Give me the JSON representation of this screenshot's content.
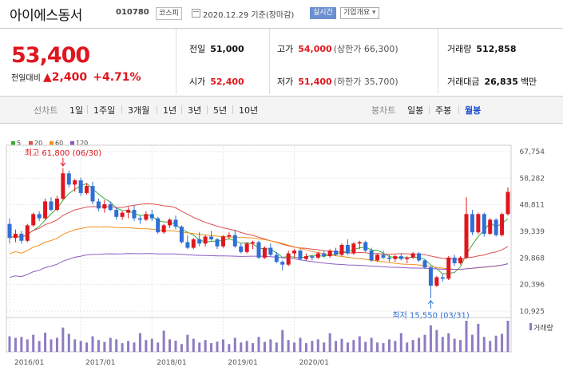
{
  "header": {
    "name": "아이에스동서",
    "code": "010780",
    "market": "코스피",
    "date": "2020.12.29 기준(장마감)",
    "realtime": "실시간",
    "company_info": "기업개요"
  },
  "summary": {
    "price": "53,400",
    "change_label": "전일대비",
    "change": "2,400",
    "change_pct": "+4.71%",
    "prev_close_label": "전일",
    "prev_close": "51,000",
    "open_label": "시가",
    "open": "52,400",
    "high_label": "고가",
    "high": "54,000",
    "upper_limit": "(상한가 66,300)",
    "low_label": "저가",
    "low": "51,400",
    "lower_limit": "(하한가 35,700)",
    "volume_label": "거래량",
    "volume": "512,858",
    "amount_label": "거래대금",
    "amount": "26,835",
    "amount_unit": "백만"
  },
  "tabs": {
    "line_chart": "선차트",
    "periods": [
      "1일",
      "1주일",
      "3개월",
      "1년",
      "3년",
      "5년",
      "10년"
    ],
    "candle_label": "봉차트",
    "candles": [
      "일봉",
      "주봉",
      "월봉"
    ],
    "selected_candle": "월봉"
  },
  "colors": {
    "up": "#e0161e",
    "down": "#2f6fd6",
    "ma5": "#3aa93a",
    "ma20": "#e05050",
    "ma60": "#f2911b",
    "ma120": "#8c5bc4",
    "volume": "#8d7cc2"
  },
  "chart_data": {
    "type": "candlestick",
    "ylim": [
      10925,
      67754
    ],
    "yticks": [
      "67,754",
      "58,282",
      "48,811",
      "39,339",
      "29,868",
      "20,396",
      "10,925"
    ],
    "xticks": [
      "2016/01",
      "2017/01",
      "2018/01",
      "2019/01",
      "2020/01"
    ],
    "legend": [
      "5",
      "20",
      "60",
      "120"
    ],
    "volume_label": "거래량",
    "high_note": "최고 61,800 (06/30)",
    "low_note": "최저 15,550 (03/31)",
    "candles": [
      [
        42000,
        44000,
        35000,
        37000
      ],
      [
        37000,
        40000,
        35500,
        38500
      ],
      [
        38500,
        39500,
        35000,
        36000
      ],
      [
        36000,
        42000,
        35500,
        41500
      ],
      [
        41500,
        46000,
        41000,
        45500
      ],
      [
        45500,
        46500,
        43000,
        44000
      ],
      [
        44000,
        51000,
        43500,
        50000
      ],
      [
        50000,
        51500,
        46500,
        47000
      ],
      [
        47000,
        52000,
        46500,
        51000
      ],
      [
        51000,
        61800,
        50500,
        60000
      ],
      [
        60000,
        61000,
        55000,
        56000
      ],
      [
        56000,
        58000,
        53500,
        57500
      ],
      [
        57500,
        58500,
        52000,
        53000
      ],
      [
        53000,
        56500,
        52500,
        55500
      ],
      [
        55500,
        57000,
        49000,
        50000
      ],
      [
        50000,
        51000,
        46500,
        47500
      ],
      [
        47500,
        50500,
        46000,
        49000
      ],
      [
        49000,
        50000,
        46500,
        47000
      ],
      [
        47000,
        48000,
        43500,
        44500
      ],
      [
        44500,
        46500,
        43500,
        46000
      ],
      [
        46000,
        48000,
        44000,
        47000
      ],
      [
        47000,
        48500,
        43000,
        44000
      ],
      [
        44000,
        45000,
        42000,
        43500
      ],
      [
        43500,
        46500,
        43000,
        45500
      ],
      [
        45500,
        47000,
        43000,
        44000
      ],
      [
        44000,
        44500,
        38500,
        39000
      ],
      [
        39000,
        42000,
        38500,
        41500
      ],
      [
        41500,
        44000,
        40500,
        43500
      ],
      [
        43500,
        45000,
        40000,
        41000
      ],
      [
        41000,
        41500,
        35000,
        35500
      ],
      [
        35500,
        38000,
        33000,
        33500
      ],
      [
        33500,
        37000,
        33000,
        36500
      ],
      [
        36500,
        39000,
        34000,
        35000
      ],
      [
        35000,
        38000,
        34000,
        37500
      ],
      [
        37500,
        39500,
        36000,
        36500
      ],
      [
        36500,
        37000,
        33000,
        34000
      ],
      [
        34000,
        38000,
        33500,
        37500
      ],
      [
        37500,
        39000,
        36500,
        38000
      ],
      [
        38000,
        40000,
        33500,
        34000
      ],
      [
        34000,
        35000,
        31500,
        32000
      ],
      [
        32000,
        35500,
        31500,
        35000
      ],
      [
        35000,
        36000,
        33000,
        35500
      ],
      [
        35500,
        36000,
        29500,
        30000
      ],
      [
        30000,
        34000,
        29500,
        33500
      ],
      [
        33500,
        35000,
        30500,
        31000
      ],
      [
        31000,
        32000,
        28000,
        28500
      ],
      [
        28500,
        29000,
        25500,
        27500
      ],
      [
        27500,
        32500,
        27000,
        31500
      ],
      [
        31500,
        33000,
        30000,
        32500
      ],
      [
        32500,
        33000,
        29000,
        29500
      ],
      [
        29500,
        31500,
        29000,
        30500
      ],
      [
        30500,
        31000,
        29000,
        30000
      ],
      [
        30000,
        32000,
        29500,
        31500
      ],
      [
        31500,
        32500,
        30000,
        30500
      ],
      [
        30500,
        33000,
        30000,
        32500
      ],
      [
        32500,
        33500,
        30500,
        31000
      ],
      [
        31000,
        35000,
        30500,
        34500
      ],
      [
        34500,
        36500,
        31000,
        31500
      ],
      [
        31500,
        35500,
        31000,
        35000
      ],
      [
        35000,
        36000,
        33000,
        35500
      ],
      [
        35500,
        36000,
        32000,
        32500
      ],
      [
        32500,
        33500,
        28500,
        29000
      ],
      [
        29000,
        31500,
        28500,
        31000
      ],
      [
        31000,
        32500,
        29500,
        30000
      ],
      [
        30000,
        31000,
        28500,
        29500
      ],
      [
        29500,
        31000,
        28500,
        30500
      ],
      [
        30500,
        31500,
        29000,
        29500
      ],
      [
        29500,
        30500,
        28000,
        30000
      ],
      [
        30000,
        32000,
        29500,
        31500
      ],
      [
        31500,
        32000,
        28500,
        29000
      ],
      [
        29000,
        29500,
        26000,
        26500
      ],
      [
        26500,
        27000,
        15550,
        20000
      ],
      [
        20000,
        23500,
        19500,
        23000
      ],
      [
        23000,
        24000,
        21500,
        22500
      ],
      [
        22500,
        30500,
        22000,
        30000
      ],
      [
        30000,
        31000,
        27000,
        28000
      ],
      [
        28000,
        30500,
        27500,
        30000
      ],
      [
        30000,
        51500,
        29500,
        45500
      ],
      [
        45500,
        47000,
        38000,
        39000
      ],
      [
        39000,
        46000,
        38500,
        45500
      ],
      [
        45500,
        46000,
        37500,
        38500
      ],
      [
        38500,
        44000,
        38000,
        43500
      ],
      [
        43500,
        44000,
        37500,
        38000
      ],
      [
        38000,
        46000,
        37500,
        45500
      ],
      [
        45500,
        55000,
        45000,
        53400
      ]
    ],
    "volumes": [
      50,
      45,
      48,
      40,
      55,
      35,
      62,
      40,
      45,
      78,
      58,
      40,
      35,
      30,
      50,
      38,
      32,
      45,
      40,
      28,
      35,
      30,
      60,
      38,
      42,
      30,
      68,
      40,
      36,
      25,
      55,
      42,
      30,
      38,
      28,
      33,
      40,
      25,
      45,
      30,
      35,
      28,
      48,
      32,
      40,
      30,
      70,
      38,
      30,
      45,
      28,
      35,
      40,
      30,
      60,
      35,
      42,
      30,
      38,
      50,
      32,
      45,
      30,
      28,
      40,
      35,
      60,
      30,
      38,
      45,
      55,
      85,
      70,
      48,
      60,
      42,
      38,
      100,
      55,
      90,
      48,
      35,
      52,
      58,
      100
    ]
  }
}
